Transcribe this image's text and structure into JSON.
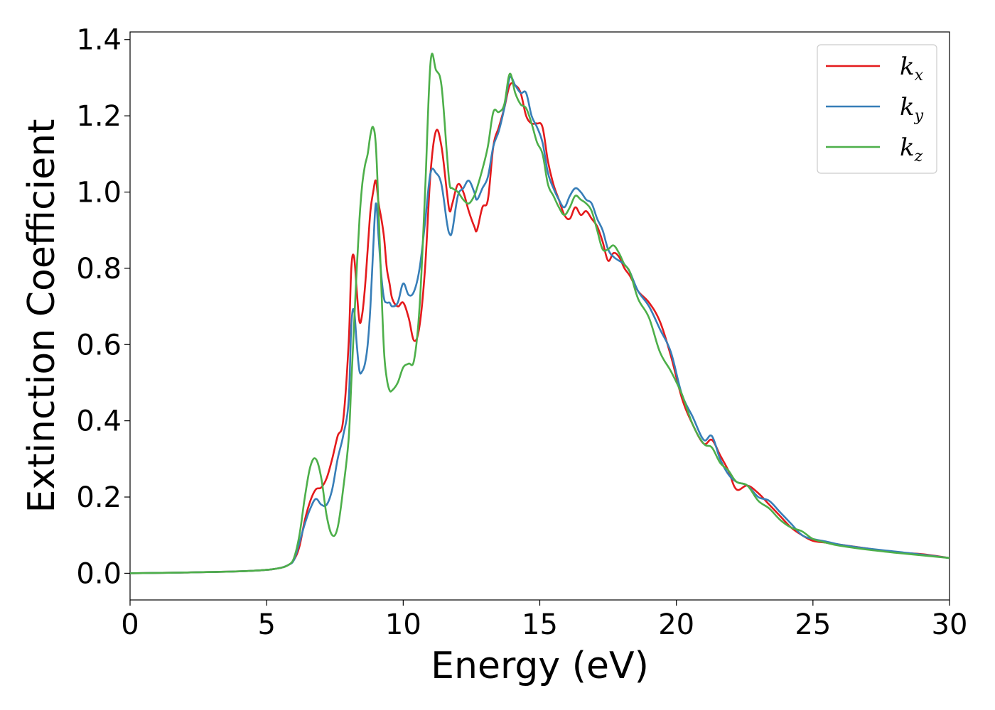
{
  "chart_data": {
    "type": "line",
    "title": "",
    "xlabel": "Energy (eV)",
    "ylabel": "Extinction Coefficient",
    "xlim": [
      0,
      30
    ],
    "ylim": [
      -0.07,
      1.42
    ],
    "xticks": [
      0,
      5,
      10,
      15,
      20,
      25,
      30
    ],
    "xtick_labels": [
      "0",
      "5",
      "10",
      "15",
      "20",
      "25",
      "30"
    ],
    "yticks": [
      0.0,
      0.2,
      0.4,
      0.6,
      0.8,
      1.0,
      1.2,
      1.4
    ],
    "ytick_labels": [
      "0.0",
      "0.2",
      "0.4",
      "0.6",
      "0.8",
      "1.0",
      "1.2",
      "1.4"
    ],
    "grid": false,
    "legend_position": "top-right",
    "series": [
      {
        "name": "k_x",
        "legend_base": "k",
        "legend_sub": "x",
        "color": "#e41a1c",
        "x": [
          0,
          2,
          4,
          5,
          5.5,
          5.8,
          6.0,
          6.2,
          6.4,
          6.6,
          6.8,
          7.0,
          7.2,
          7.4,
          7.6,
          7.8,
          8.0,
          8.1,
          8.2,
          8.3,
          8.4,
          8.5,
          8.6,
          8.7,
          8.8,
          8.9,
          9.0,
          9.1,
          9.2,
          9.3,
          9.4,
          9.5,
          9.6,
          9.8,
          10.0,
          10.2,
          10.4,
          10.6,
          10.8,
          11.0,
          11.2,
          11.4,
          11.6,
          11.7,
          11.8,
          12.0,
          12.2,
          12.4,
          12.6,
          12.7,
          12.9,
          13.1,
          13.3,
          13.5,
          13.7,
          13.9,
          14.1,
          14.3,
          14.5,
          14.7,
          14.9,
          15.1,
          15.3,
          15.5,
          15.7,
          15.9,
          16.1,
          16.3,
          16.5,
          16.7,
          16.9,
          17.1,
          17.3,
          17.5,
          17.7,
          17.9,
          18.1,
          18.3,
          18.6,
          19.0,
          19.4,
          19.8,
          20.2,
          20.6,
          21.0,
          21.3,
          21.6,
          21.9,
          22.2,
          22.6,
          23.0,
          23.4,
          23.8,
          24.2,
          24.6,
          25.0,
          25.5,
          26,
          27,
          28,
          29,
          30
        ],
        "y": [
          0.0,
          0.002,
          0.005,
          0.009,
          0.014,
          0.022,
          0.035,
          0.07,
          0.14,
          0.19,
          0.22,
          0.225,
          0.25,
          0.3,
          0.36,
          0.4,
          0.6,
          0.8,
          0.83,
          0.74,
          0.66,
          0.68,
          0.75,
          0.85,
          0.95,
          1.0,
          1.03,
          0.97,
          0.93,
          0.88,
          0.8,
          0.76,
          0.72,
          0.7,
          0.71,
          0.67,
          0.61,
          0.65,
          0.8,
          1.05,
          1.16,
          1.12,
          1.0,
          0.95,
          0.97,
          1.02,
          1.0,
          0.95,
          0.91,
          0.9,
          0.96,
          0.98,
          1.12,
          1.17,
          1.22,
          1.28,
          1.28,
          1.26,
          1.2,
          1.18,
          1.18,
          1.17,
          1.08,
          1.02,
          0.98,
          0.94,
          0.93,
          0.96,
          0.94,
          0.95,
          0.93,
          0.91,
          0.87,
          0.82,
          0.84,
          0.83,
          0.8,
          0.78,
          0.74,
          0.71,
          0.66,
          0.57,
          0.46,
          0.39,
          0.34,
          0.35,
          0.31,
          0.27,
          0.22,
          0.23,
          0.21,
          0.18,
          0.15,
          0.12,
          0.1,
          0.085,
          0.08,
          0.075,
          0.065,
          0.055,
          0.05,
          0.04
        ]
      },
      {
        "name": "k_y",
        "legend_base": "k",
        "legend_sub": "y",
        "color": "#377eb8",
        "x": [
          0,
          2,
          4,
          5,
          5.5,
          5.8,
          6.0,
          6.2,
          6.4,
          6.6,
          6.8,
          7.0,
          7.2,
          7.4,
          7.6,
          7.8,
          8.0,
          8.1,
          8.2,
          8.3,
          8.4,
          8.5,
          8.6,
          8.7,
          8.8,
          8.9,
          9.0,
          9.1,
          9.2,
          9.3,
          9.4,
          9.5,
          9.6,
          9.8,
          10.0,
          10.2,
          10.4,
          10.6,
          10.8,
          11.0,
          11.2,
          11.4,
          11.6,
          11.7,
          11.8,
          12.0,
          12.2,
          12.4,
          12.6,
          12.7,
          12.9,
          13.1,
          13.3,
          13.5,
          13.7,
          13.9,
          14.1,
          14.3,
          14.5,
          14.7,
          14.9,
          15.1,
          15.3,
          15.5,
          15.7,
          15.9,
          16.1,
          16.3,
          16.5,
          16.7,
          16.9,
          17.1,
          17.3,
          17.5,
          17.7,
          17.9,
          18.1,
          18.3,
          18.6,
          19.0,
          19.4,
          19.8,
          20.2,
          20.6,
          21.0,
          21.3,
          21.6,
          21.9,
          22.2,
          22.6,
          23.0,
          23.4,
          23.8,
          24.2,
          24.6,
          25.0,
          25.5,
          26,
          27,
          28,
          29,
          30
        ],
        "y": [
          0.0,
          0.002,
          0.005,
          0.009,
          0.014,
          0.022,
          0.035,
          0.08,
          0.13,
          0.17,
          0.195,
          0.18,
          0.18,
          0.22,
          0.3,
          0.36,
          0.45,
          0.65,
          0.69,
          0.6,
          0.53,
          0.53,
          0.55,
          0.6,
          0.7,
          0.85,
          0.97,
          0.88,
          0.78,
          0.72,
          0.71,
          0.71,
          0.7,
          0.71,
          0.76,
          0.73,
          0.74,
          0.8,
          0.92,
          1.05,
          1.05,
          1.02,
          0.92,
          0.89,
          0.9,
          0.99,
          1.01,
          1.03,
          1.0,
          0.98,
          1.01,
          1.04,
          1.12,
          1.16,
          1.22,
          1.3,
          1.28,
          1.26,
          1.26,
          1.2,
          1.17,
          1.13,
          1.05,
          1.01,
          0.98,
          0.96,
          0.99,
          1.01,
          1.0,
          0.98,
          0.97,
          0.93,
          0.9,
          0.85,
          0.83,
          0.82,
          0.81,
          0.79,
          0.74,
          0.7,
          0.64,
          0.58,
          0.47,
          0.41,
          0.35,
          0.36,
          0.3,
          0.26,
          0.24,
          0.23,
          0.2,
          0.19,
          0.16,
          0.13,
          0.1,
          0.09,
          0.083,
          0.075,
          0.065,
          0.057,
          0.049,
          0.04
        ]
      },
      {
        "name": "k_z",
        "legend_base": "k",
        "legend_sub": "z",
        "color": "#4daf4a",
        "x": [
          0,
          2,
          4,
          5,
          5.5,
          5.8,
          6.0,
          6.2,
          6.4,
          6.6,
          6.8,
          7.0,
          7.2,
          7.4,
          7.6,
          7.8,
          8.0,
          8.1,
          8.2,
          8.3,
          8.4,
          8.5,
          8.6,
          8.7,
          8.8,
          8.9,
          9.0,
          9.1,
          9.2,
          9.3,
          9.4,
          9.5,
          9.6,
          9.8,
          10.0,
          10.2,
          10.4,
          10.6,
          10.8,
          11.0,
          11.2,
          11.4,
          11.6,
          11.7,
          11.8,
          12.0,
          12.2,
          12.4,
          12.6,
          12.7,
          12.9,
          13.1,
          13.3,
          13.5,
          13.7,
          13.9,
          14.1,
          14.3,
          14.5,
          14.7,
          14.9,
          15.1,
          15.3,
          15.5,
          15.7,
          15.9,
          16.1,
          16.3,
          16.5,
          16.7,
          16.9,
          17.1,
          17.3,
          17.5,
          17.7,
          17.9,
          18.1,
          18.3,
          18.6,
          19.0,
          19.4,
          19.8,
          20.2,
          20.6,
          21.0,
          21.3,
          21.6,
          21.9,
          22.2,
          22.6,
          23.0,
          23.4,
          23.8,
          24.2,
          24.6,
          25.0,
          25.5,
          26,
          27,
          28,
          29,
          30
        ],
        "y": [
          0.0,
          0.002,
          0.005,
          0.009,
          0.014,
          0.022,
          0.04,
          0.1,
          0.2,
          0.28,
          0.3,
          0.25,
          0.15,
          0.1,
          0.12,
          0.22,
          0.35,
          0.5,
          0.65,
          0.8,
          0.93,
          1.02,
          1.07,
          1.1,
          1.15,
          1.17,
          1.12,
          0.95,
          0.75,
          0.58,
          0.51,
          0.48,
          0.48,
          0.5,
          0.54,
          0.55,
          0.56,
          0.7,
          1.0,
          1.34,
          1.32,
          1.28,
          1.1,
          1.02,
          1.01,
          1.0,
          0.98,
          0.97,
          0.99,
          1.01,
          1.06,
          1.12,
          1.21,
          1.21,
          1.23,
          1.31,
          1.26,
          1.23,
          1.22,
          1.18,
          1.13,
          1.1,
          1.02,
          0.99,
          0.96,
          0.94,
          0.96,
          0.99,
          0.98,
          0.97,
          0.95,
          0.9,
          0.85,
          0.85,
          0.86,
          0.84,
          0.81,
          0.79,
          0.72,
          0.67,
          0.58,
          0.53,
          0.47,
          0.39,
          0.34,
          0.33,
          0.29,
          0.27,
          0.24,
          0.23,
          0.19,
          0.17,
          0.14,
          0.12,
          0.11,
          0.09,
          0.08,
          0.072,
          0.062,
          0.054,
          0.047,
          0.04
        ]
      }
    ]
  }
}
